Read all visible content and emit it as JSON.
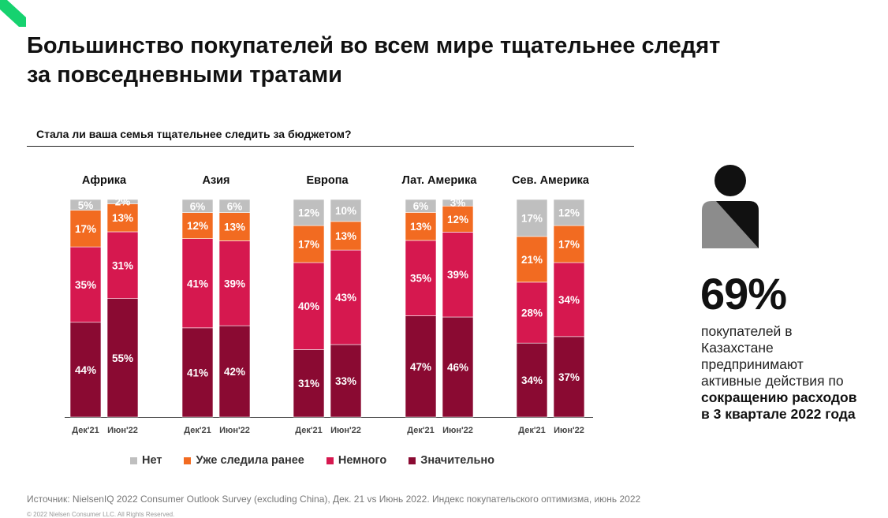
{
  "header": {
    "title_line1": "Большинство покупателей во всем мире тщательнее следят",
    "title_line2": "за повседневными тратами"
  },
  "question": "Стала ли ваша семья тщательнее следить за бюджетом?",
  "colors": {
    "net": "#bfbfbf",
    "already": "#f26b21",
    "little": "#d6184f",
    "significant": "#8a0a32",
    "logo": "#16d26f"
  },
  "chart_data": {
    "type": "bar",
    "stacked": true,
    "percent_stacked": true,
    "groups": [
      "Африка",
      "Азия",
      "Европа",
      "Лат. Америка",
      "Сев. Америка"
    ],
    "bar_labels": [
      "Дек'21",
      "Июн'22"
    ],
    "series": [
      {
        "name": "Значительно",
        "values": [
          [
            44,
            55
          ],
          [
            41,
            42
          ],
          [
            31,
            33
          ],
          [
            47,
            46
          ],
          [
            34,
            37
          ]
        ]
      },
      {
        "name": "Немного",
        "values": [
          [
            35,
            31
          ],
          [
            41,
            39
          ],
          [
            40,
            43
          ],
          [
            35,
            39
          ],
          [
            28,
            34
          ]
        ]
      },
      {
        "name": "Уже следила ранее",
        "values": [
          [
            17,
            13
          ],
          [
            12,
            13
          ],
          [
            17,
            13
          ],
          [
            13,
            12
          ],
          [
            21,
            17
          ]
        ]
      },
      {
        "name": "Нет",
        "values": [
          [
            5,
            2
          ],
          [
            6,
            6
          ],
          [
            12,
            10
          ],
          [
            6,
            3
          ],
          [
            17,
            12
          ]
        ]
      }
    ],
    "legend_order": [
      "Нет",
      "Уже следила ранее",
      "Немного",
      "Значительно"
    ],
    "ylim": [
      0,
      100
    ]
  },
  "stat": {
    "value": "69%",
    "line1": "покупателей в",
    "line2": "Казахстане",
    "line3": "предпринимают",
    "line4": "активные действия по",
    "line5_bold": "сокращению расходов",
    "line6_bold": "в 3 квартале 2022 года"
  },
  "source": "Источник: NielsenIQ 2022 Consumer Outlook Survey (excluding China), Дек. 21 vs Июнь 2022. Индекс покупательского оптимизма, июнь 2022",
  "copyright": "© 2022 Nielsen Consumer LLC. All Rights Reserved."
}
